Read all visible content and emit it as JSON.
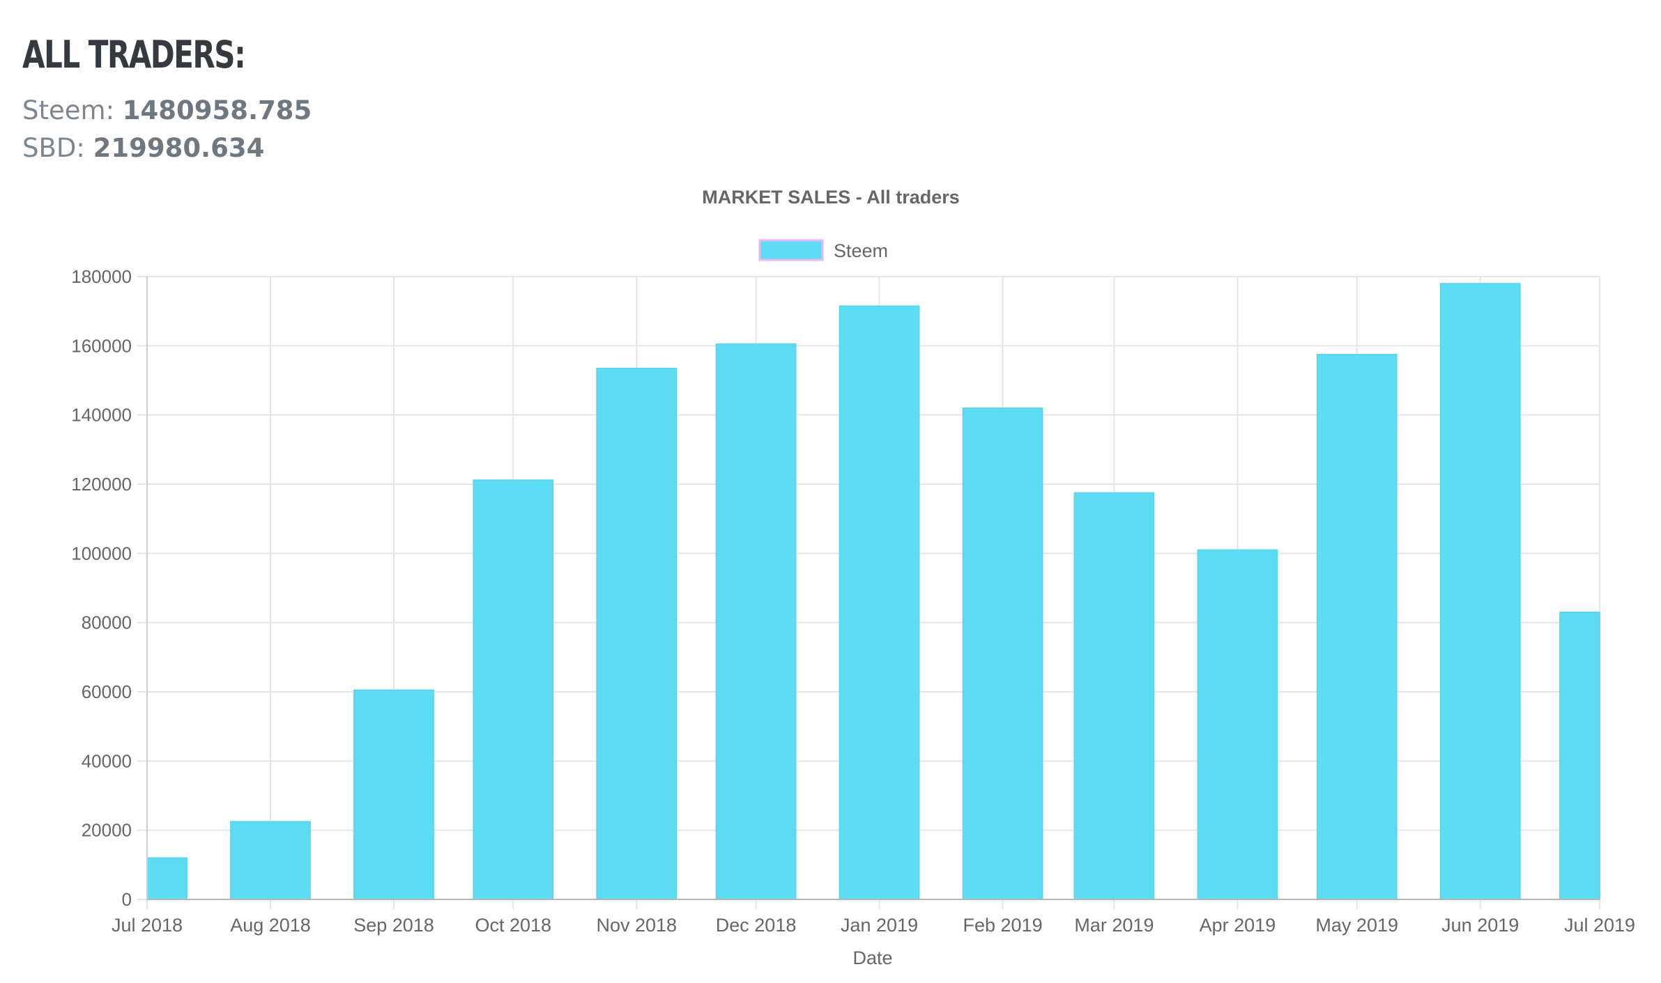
{
  "header": {
    "title": "ALL TRADERS:",
    "steem_label": "Steem:",
    "steem_value": "1480958.785",
    "sbd_label": "SBD:",
    "sbd_value": "219980.634"
  },
  "colors": {
    "bar_fill": "#5edcf3",
    "legend_border": "#e8b6f0",
    "grid": "#e5e5e5",
    "text": "#666666"
  },
  "chart_data": {
    "type": "bar",
    "title": "MARKET SALES - All traders",
    "xlabel": "Date",
    "ylabel": "",
    "legend": {
      "position": "top-center",
      "label": "Steem"
    },
    "grid": true,
    "ylim": [
      0,
      180000
    ],
    "yticks": [
      0,
      20000,
      40000,
      60000,
      80000,
      100000,
      120000,
      140000,
      160000,
      180000
    ],
    "xtick_labels": [
      "Jul 2018",
      "Aug 2018",
      "Sep 2018",
      "Oct 2018",
      "Nov 2018",
      "Dec 2018",
      "Jan 2019",
      "Feb 2019",
      "Mar 2019",
      "Apr 2019",
      "May 2019",
      "Jun 2019",
      "Jul 2019"
    ],
    "xlim": [
      "2018-07-01",
      "2019-07-01"
    ],
    "bars": [
      {
        "date": "2018-07-01",
        "value": 12000
      },
      {
        "date": "2018-08-01",
        "value": 22500
      },
      {
        "date": "2018-09-01",
        "value": 60500
      },
      {
        "date": "2018-10-01",
        "value": 121200
      },
      {
        "date": "2018-11-01",
        "value": 153500
      },
      {
        "date": "2018-12-01",
        "value": 160500
      },
      {
        "date": "2019-01-01",
        "value": 171500
      },
      {
        "date": "2019-02-01",
        "value": 142000
      },
      {
        "date": "2019-03-01",
        "value": 117500
      },
      {
        "date": "2019-04-01",
        "value": 101000
      },
      {
        "date": "2019-05-01",
        "value": 157500
      },
      {
        "date": "2019-06-01",
        "value": 178000
      },
      {
        "date": "2019-07-01",
        "value": 83000
      }
    ]
  }
}
